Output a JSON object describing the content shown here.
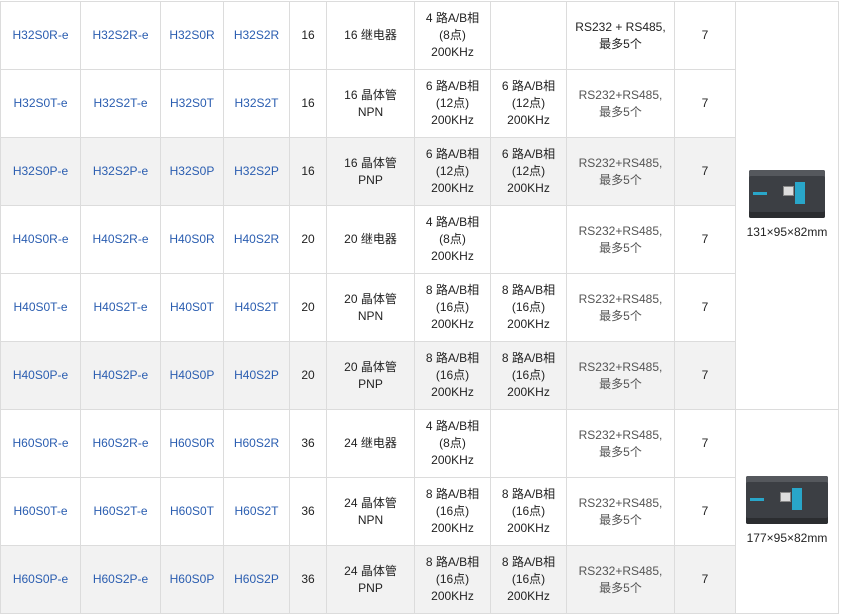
{
  "rows": [
    {
      "m1": "H32S0R-e",
      "m2": "H32S2R-e",
      "m3": "H32S0R",
      "m4": "H32S2R",
      "io": "16",
      "out": [
        "16 继电器"
      ],
      "hs1": [
        "4 路A/B相",
        "(8点)",
        "200KHz"
      ],
      "hs2": [],
      "comm": [
        "RS232 + RS485,",
        "最多5个"
      ],
      "n": "7"
    },
    {
      "m1": "H32S0T-e",
      "m2": "H32S2T-e",
      "m3": "H32S0T",
      "m4": "H32S2T",
      "io": "16",
      "out": [
        "16 晶体管",
        "NPN"
      ],
      "hs1": [
        "6 路A/B相",
        "(12点)",
        "200KHz"
      ],
      "hs2": [
        "6 路A/B相",
        "(12点)",
        "200KHz"
      ],
      "comm": [
        "RS232+RS485,",
        "最多5个"
      ],
      "n": "7"
    },
    {
      "m1": "H32S0P-e",
      "m2": "H32S2P-e",
      "m3": "H32S0P",
      "m4": "H32S2P",
      "io": "16",
      "out": [
        "16 晶体管",
        "PNP"
      ],
      "hs1": [
        "6 路A/B相",
        "(12点)",
        "200KHz"
      ],
      "hs2": [
        "6 路A/B相",
        "(12点)",
        "200KHz"
      ],
      "comm": [
        "RS232+RS485,",
        "最多5个"
      ],
      "n": "7"
    },
    {
      "m1": "H40S0R-e",
      "m2": "H40S2R-e",
      "m3": "H40S0R",
      "m4": "H40S2R",
      "io": "20",
      "out": [
        "20 继电器"
      ],
      "hs1": [
        "4 路A/B相",
        "(8点)",
        "200KHz"
      ],
      "hs2": [],
      "comm": [
        "RS232+RS485,",
        "最多5个"
      ],
      "n": "7"
    },
    {
      "m1": "H40S0T-e",
      "m2": "H40S2T-e",
      "m3": "H40S0T",
      "m4": "H40S2T",
      "io": "20",
      "out": [
        "20 晶体管",
        "NPN"
      ],
      "hs1": [
        "8 路A/B相",
        "(16点)",
        "200KHz"
      ],
      "hs2": [
        "8 路A/B相",
        "(16点)",
        "200KHz"
      ],
      "comm": [
        "RS232+RS485,",
        "最多5个"
      ],
      "n": "7"
    },
    {
      "m1": "H40S0P-e",
      "m2": "H40S2P-e",
      "m3": "H40S0P",
      "m4": "H40S2P",
      "io": "20",
      "out": [
        "20 晶体管",
        "PNP"
      ],
      "hs1": [
        "8 路A/B相",
        "(16点)",
        "200KHz"
      ],
      "hs2": [
        "8 路A/B相",
        "(16点)",
        "200KHz"
      ],
      "comm": [
        "RS232+RS485,",
        "最多5个"
      ],
      "n": "7"
    },
    {
      "m1": "H60S0R-e",
      "m2": "H60S2R-e",
      "m3": "H60S0R",
      "m4": "H60S2R",
      "io": "36",
      "out": [
        "24 继电器"
      ],
      "hs1": [
        "4 路A/B相",
        "(8点)",
        "200KHz"
      ],
      "hs2": [],
      "comm": [
        "RS232+RS485,",
        "最多5个"
      ],
      "n": "7"
    },
    {
      "m1": "H60S0T-e",
      "m2": "H60S2T-e",
      "m3": "H60S0T",
      "m4": "H60S2T",
      "io": "36",
      "out": [
        "24 晶体管",
        "NPN"
      ],
      "hs1": [
        "8 路A/B相",
        "(16点)",
        "200KHz"
      ],
      "hs2": [
        "8 路A/B相",
        "(16点)",
        "200KHz"
      ],
      "comm": [
        "RS232+RS485,",
        "最多5个"
      ],
      "n": "7"
    },
    {
      "m1": "H60S0P-e",
      "m2": "H60S2P-e",
      "m3": "H60S0P",
      "m4": "H60S2P",
      "io": "36",
      "out": [
        "24 晶体管",
        "PNP"
      ],
      "hs1": [
        "8 路A/B相",
        "(16点)",
        "200KHz"
      ],
      "hs2": [
        "8 路A/B相",
        "(16点)",
        "200KHz"
      ],
      "comm": [
        "RS232+RS485,",
        "最多5个"
      ],
      "n": "7"
    }
  ],
  "images": [
    {
      "dims": "131×95×82mm",
      "icon": "plc-product-image"
    },
    {
      "dims": "177×95×82mm",
      "icon": "plc-product-image"
    }
  ]
}
